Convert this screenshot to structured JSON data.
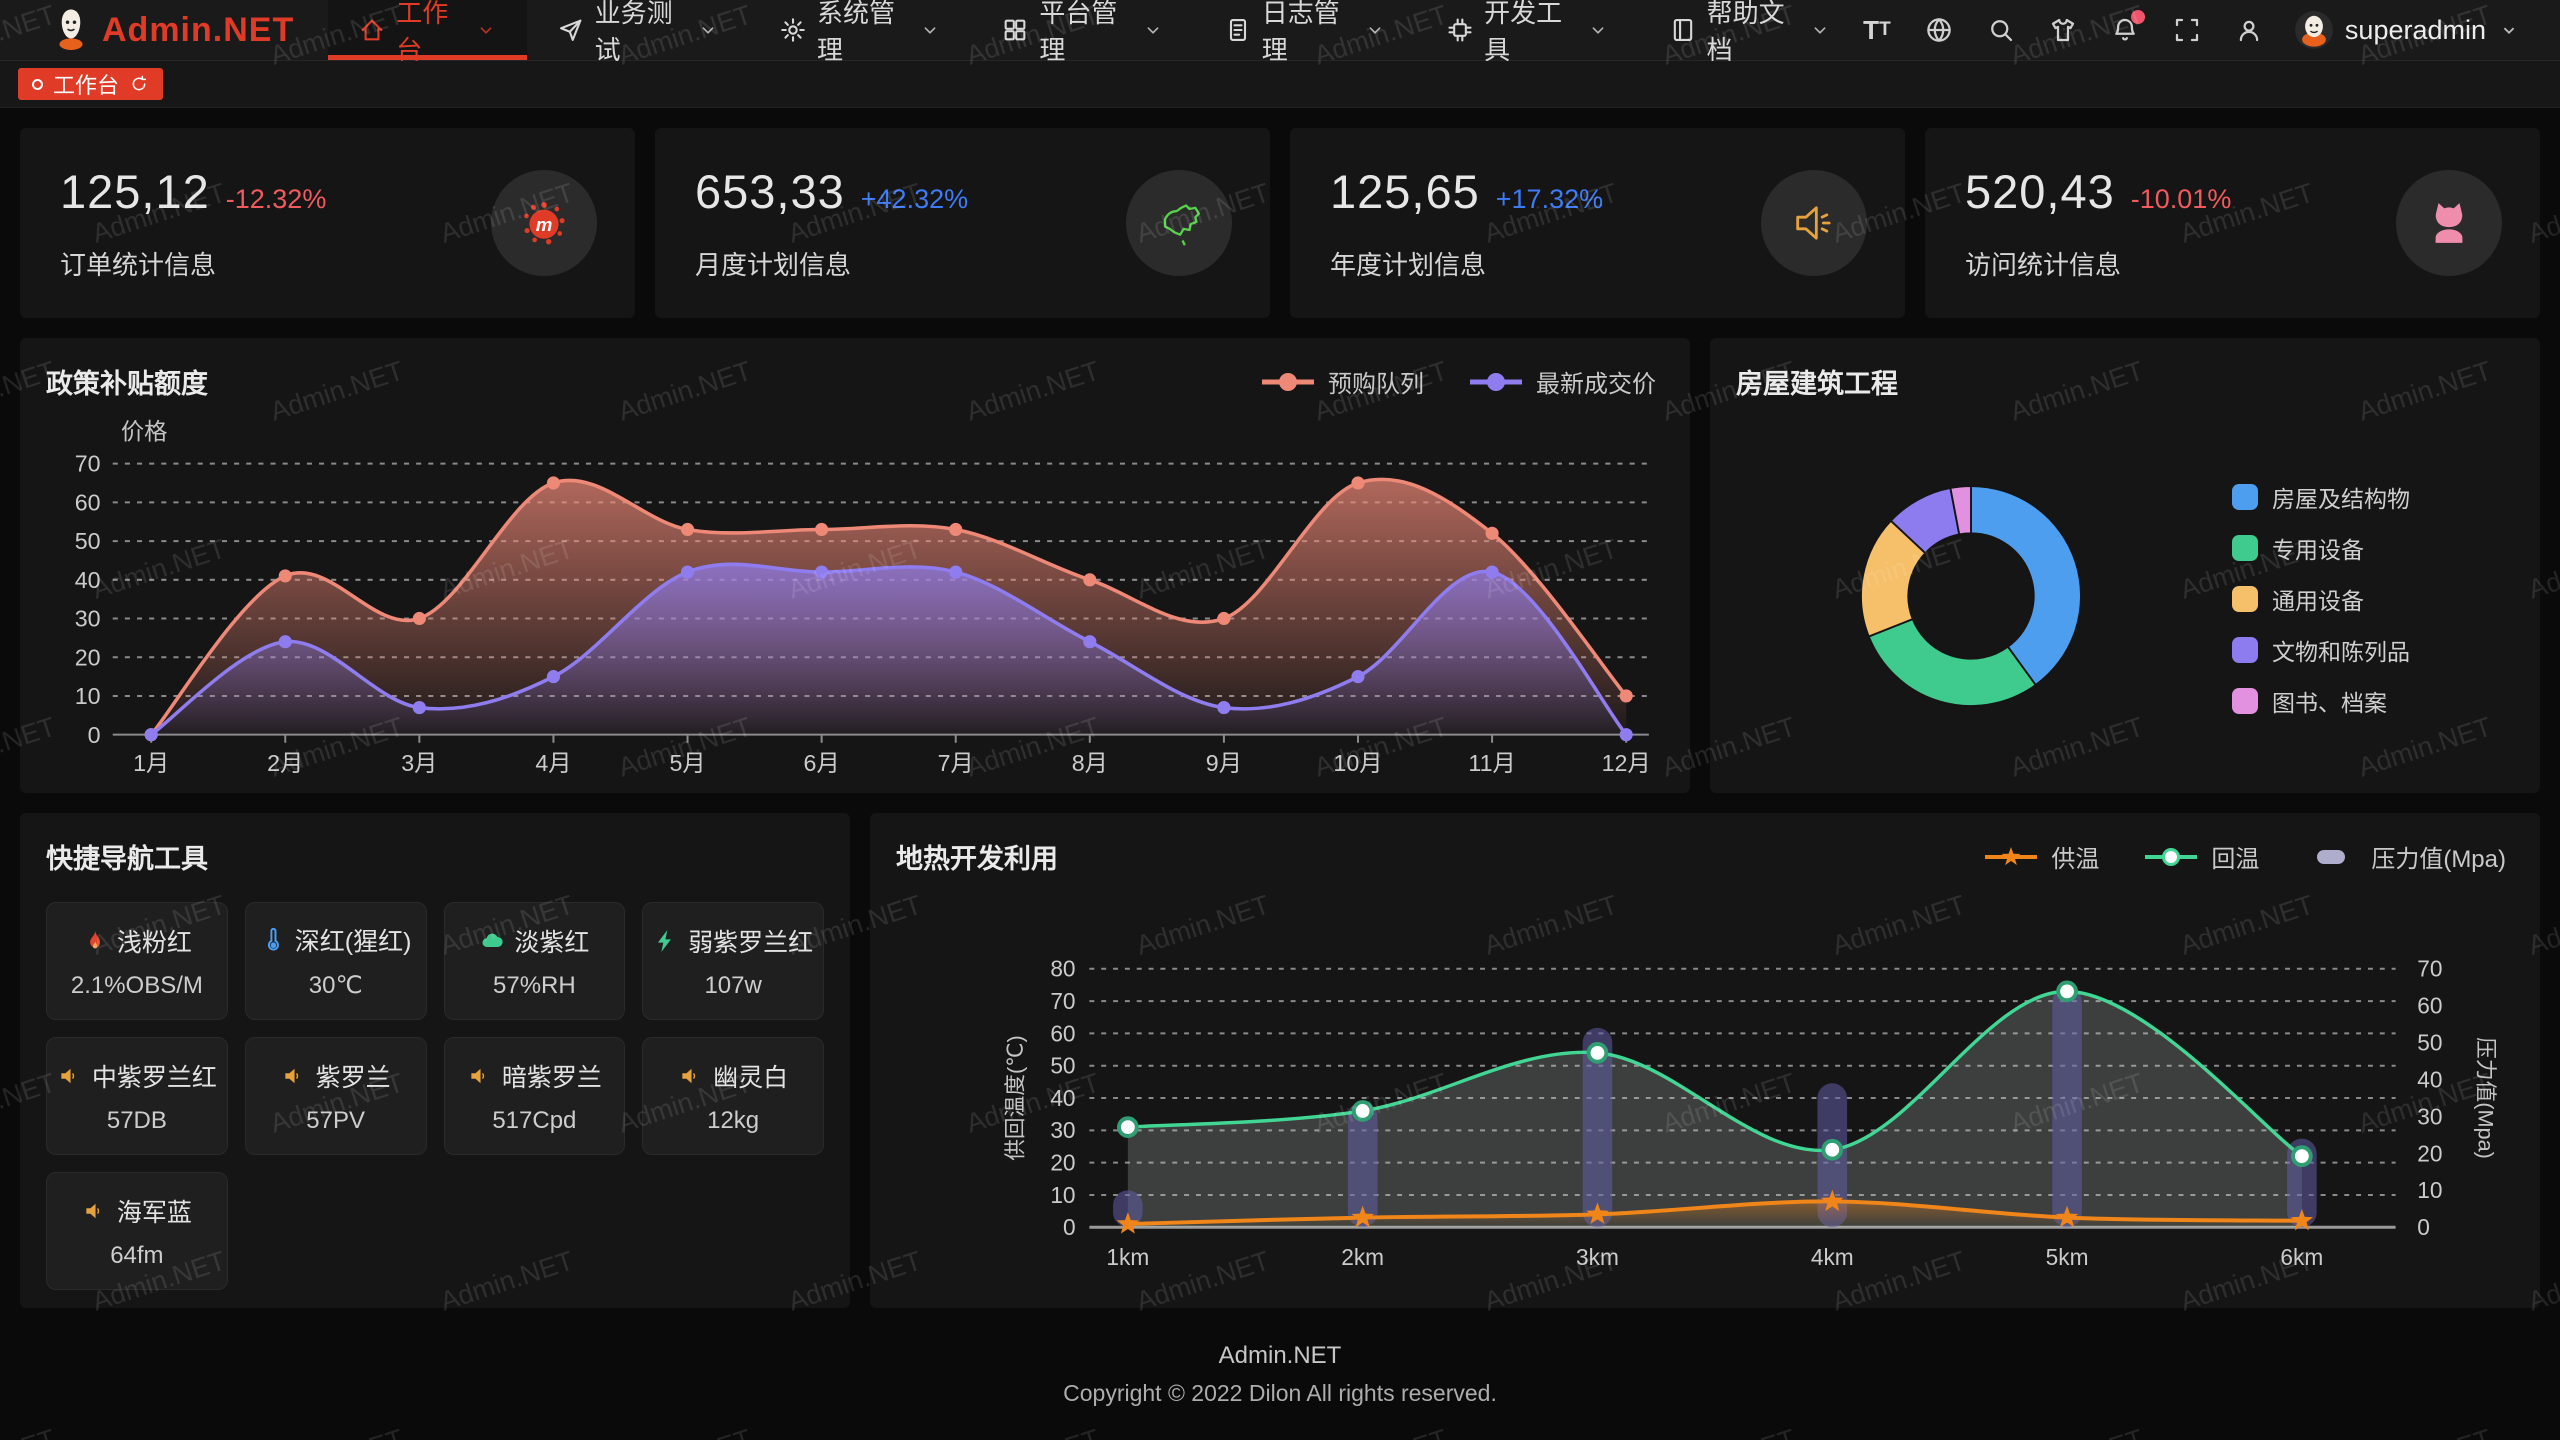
{
  "navbar": {
    "logo_text": "Admin.NET",
    "menu": [
      {
        "label": "工作台",
        "icon": "home-icon",
        "active": true
      },
      {
        "label": "业务测试",
        "icon": "send-icon",
        "active": false
      },
      {
        "label": "系统管理",
        "icon": "gear-icon",
        "active": false
      },
      {
        "label": "平台管理",
        "icon": "grid-icon",
        "active": false
      },
      {
        "label": "日志管理",
        "icon": "log-icon",
        "active": false
      },
      {
        "label": "开发工具",
        "icon": "chip-icon",
        "active": false
      },
      {
        "label": "帮助文档",
        "icon": "book-icon",
        "active": false
      }
    ],
    "right_icons": [
      "font-size-icon",
      "language-icon",
      "search-icon",
      "theme-icon",
      "notification-bell-icon",
      "fullscreen-icon",
      "profile-icon"
    ],
    "notification_has_badge": true,
    "user": "superadmin"
  },
  "tagbar": {
    "tags": [
      {
        "label": "工作台",
        "active": true
      }
    ]
  },
  "stat_cards": [
    {
      "value": "125,12",
      "delta": "-12.32%",
      "trend": "down",
      "label": "订单统计信息",
      "icon": "meetup-blob-icon"
    },
    {
      "value": "653,33",
      "delta": "+42.32%",
      "trend": "up",
      "label": "月度计划信息",
      "icon": "china-map-icon"
    },
    {
      "value": "125,65",
      "delta": "+17.32%",
      "trend": "up",
      "label": "年度计划信息",
      "icon": "speaker-icon"
    },
    {
      "value": "520,43",
      "delta": "-10.01%",
      "trend": "down",
      "label": "访问统计信息",
      "icon": "cat-icon"
    }
  ],
  "chart_data": [
    {
      "type": "area",
      "title": "政策补贴额度",
      "ylabel": "价格",
      "ylim": [
        0,
        70
      ],
      "grid": "dashed",
      "legend_position": "top-right",
      "categories": [
        "1月",
        "2月",
        "3月",
        "4月",
        "5月",
        "6月",
        "7月",
        "8月",
        "9月",
        "10月",
        "11月",
        "12月"
      ],
      "series": [
        {
          "name": "预购队列",
          "color": "#ee8877",
          "values": [
            0,
            41,
            30,
            65,
            53,
            53,
            53,
            40,
            30,
            65,
            52,
            10
          ]
        },
        {
          "name": "最新成交价",
          "color": "#8f7df0",
          "values": [
            0,
            24,
            7,
            15,
            42,
            42,
            42,
            24,
            7,
            15,
            42,
            0
          ]
        }
      ]
    },
    {
      "type": "pie",
      "title": "房屋建筑工程",
      "legend_position": "right",
      "inner_radius_ratio": 0.57,
      "slices": [
        {
          "name": "房屋及结构物",
          "value": 40,
          "color": "#4e9ef0"
        },
        {
          "name": "专用设备",
          "value": 29,
          "color": "#3fcb8e"
        },
        {
          "name": "通用设备",
          "value": 18,
          "color": "#f6bf69"
        },
        {
          "name": "文物和陈列品",
          "value": 10,
          "color": "#8d7cf0"
        },
        {
          "name": "图书、档案",
          "value": 3,
          "color": "#e291e0"
        }
      ]
    },
    {
      "type": "line",
      "title": "地热开发利用",
      "ylabel_left": "供回温度(℃)",
      "ylabel_right": "压力值(Mpa)",
      "ylim_left": [
        0,
        80
      ],
      "ylim_right": [
        0,
        70
      ],
      "grid": "dashed",
      "legend_position": "top-right",
      "categories": [
        "1km",
        "2km",
        "3km",
        "4km",
        "5km",
        "6km"
      ],
      "series": [
        {
          "name": "供温",
          "type": "line",
          "axis": "left",
          "marker": "star",
          "color": "#f08519",
          "values": [
            1,
            3,
            4,
            8,
            3,
            2
          ]
        },
        {
          "name": "回温",
          "type": "line",
          "axis": "left",
          "marker": "circle",
          "color": "#42d695",
          "values": [
            31,
            36,
            54,
            24,
            73,
            22
          ]
        },
        {
          "name": "压力值(Mpa)",
          "type": "bar",
          "axis": "right",
          "marker": "bar",
          "color": "#8a88b8",
          "values": [
            10,
            34,
            54,
            39,
            65,
            24
          ]
        }
      ]
    }
  ],
  "quick_nav": {
    "title": "快捷导航工具",
    "items": [
      {
        "name": "浅粉红",
        "value": "2.1%OBS/M",
        "icon": "flame-icon"
      },
      {
        "name": "深红(猩红)",
        "value": "30℃",
        "icon": "thermometer-icon"
      },
      {
        "name": "淡紫红",
        "value": "57%RH",
        "icon": "cloud-icon"
      },
      {
        "name": "弱紫罗兰红",
        "value": "107w",
        "icon": "bolt-icon"
      },
      {
        "name": "中紫罗兰红",
        "value": "57DB",
        "icon": "speaker-small-icon"
      },
      {
        "name": "紫罗兰",
        "value": "57PV",
        "icon": "speaker-small-icon"
      },
      {
        "name": "暗紫罗兰",
        "value": "517Cpd",
        "icon": "speaker-small-icon"
      },
      {
        "name": "幽灵白",
        "value": "12kg",
        "icon": "speaker-small-icon"
      },
      {
        "name": "海军蓝",
        "value": "64fm",
        "icon": "speaker-small-icon"
      }
    ]
  },
  "footer": {
    "line1": "Admin.NET",
    "line2": "Copyright © 2022 Dilon All rights reserved."
  },
  "watermark": {
    "text": "Admin.NET"
  },
  "colors": {
    "accent_red": "#df3b26",
    "delta_down": "#f15a5e",
    "delta_up": "#3e7bf7",
    "series_coral": "#ee8877",
    "series_purple": "#8f7df0",
    "series_orange": "#f08519",
    "series_green": "#42d695",
    "bar_pressure": "#8a88b8"
  }
}
